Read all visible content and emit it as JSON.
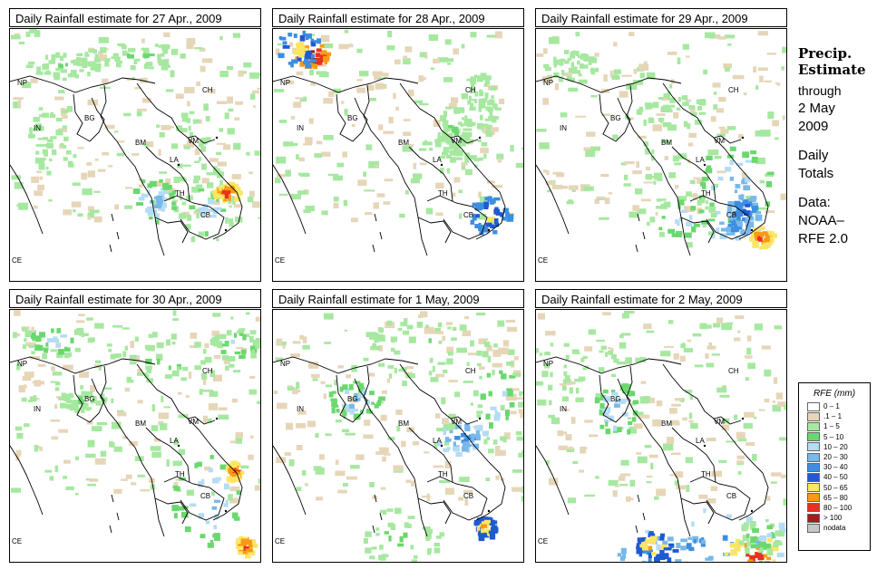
{
  "panels": [
    {
      "title": "Daily Rainfall estimate for  27 Apr., 2009"
    },
    {
      "title": "Daily Rainfall estimate for  28 Apr., 2009"
    },
    {
      "title": "Daily Rainfall estimate for  29 Apr., 2009"
    },
    {
      "title": "Daily Rainfall estimate for  30 Apr., 2009"
    },
    {
      "title": "Daily Rainfall estimate for  1 May, 2009"
    },
    {
      "title": "Daily Rainfall estimate for  2 May, 2009"
    }
  ],
  "country_labels": {
    "np": "NP",
    "ch": "CH",
    "in": "IN",
    "bg": "BG",
    "bm": "BM",
    "vm": "VM",
    "la": "LA",
    "th": "TH",
    "cb": "CB",
    "ce": "CE"
  },
  "side": {
    "line1": "Precip.",
    "line2": "Estimate",
    "line3": "through",
    "line4": "2 May",
    "line5": "2009",
    "line6": "Daily",
    "line7": "Totals",
    "line8": "Data:",
    "line9": "NOAA–",
    "line10": "RFE 2.0"
  },
  "legend": {
    "title": "RFE (mm)",
    "items": [
      {
        "label": "0 – 1",
        "color": "#ffffff"
      },
      {
        "label": ".1 – 1",
        "color": "#e6d6b8"
      },
      {
        "label": "1 – 5",
        "color": "#a6e8a0"
      },
      {
        "label": "5 – 10",
        "color": "#6ad86e"
      },
      {
        "label": "10 – 20",
        "color": "#b4dcf4"
      },
      {
        "label": "20 – 30",
        "color": "#78b8ea"
      },
      {
        "label": "30 – 40",
        "color": "#3c8ee0"
      },
      {
        "label": "40 – 50",
        "color": "#1e5ad0"
      },
      {
        "label": "50 – 65",
        "color": "#fae664"
      },
      {
        "label": "65 – 80",
        "color": "#fa9a14"
      },
      {
        "label": "80 – 100",
        "color": "#e6321e"
      },
      {
        "label": "> 100",
        "color": "#a01e1e"
      },
      {
        "label": "nodata",
        "color": "#c8c8c8"
      }
    ]
  }
}
